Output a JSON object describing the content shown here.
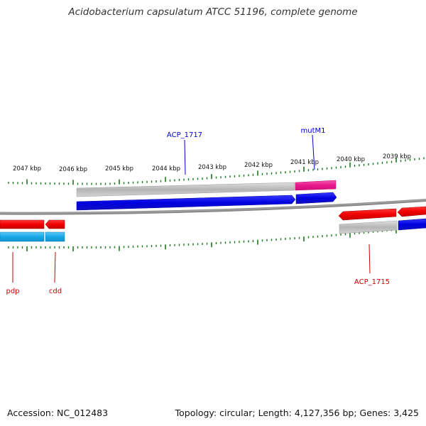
{
  "title": "Acidobacterium capsulatum ATCC 51196, complete genome",
  "accession_label": "Accession: NC_012483",
  "topology_label": "Topology: circular; Length: 4,127,356 bp; Genes: 3,425",
  "ticks": [
    "2047 kbp",
    "2046 kbp",
    "2045 kbp",
    "2044 kbp",
    "2043 kbp",
    "2042 kbp",
    "2041 kbp",
    "2040 kbp",
    "2039 kbp"
  ],
  "gene_labels": {
    "top": [
      "ACP_1717",
      "mutM1"
    ],
    "bottom": [
      "pdp",
      "cdd",
      "ACP_1715"
    ]
  },
  "colors": {
    "forward_gene": "#0000e6",
    "reverse_gene": "#f00000",
    "cds_gray": "#b8b8b8",
    "rna_pink": "#e8188c",
    "reverse_cyan": "#1aa8e8",
    "tick_green": "#1a7a1a",
    "label_blue": "#0000cc",
    "label_red": "#cc0000"
  }
}
